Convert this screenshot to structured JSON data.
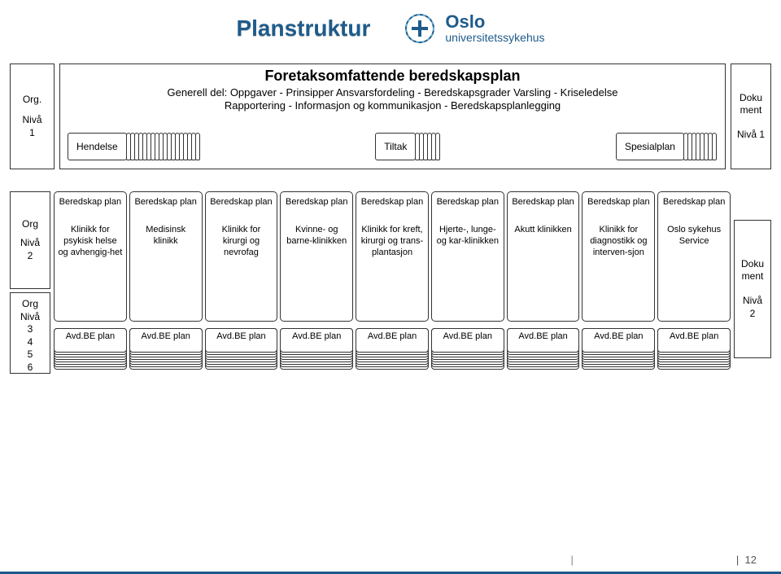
{
  "title": "Planstruktur",
  "logo": {
    "line1": "Oslo",
    "line2": "universitetssykehus"
  },
  "colors": {
    "title_color": "#1f5b8a",
    "border_color": "#333333",
    "background": "#ffffff",
    "footer_rule": "#1b5a8a"
  },
  "level1": {
    "left": {
      "l1": "Org.",
      "l2": "Nivå",
      "l3": "1"
    },
    "center": {
      "title": "Foretaksomfattende beredskapsplan",
      "sub1": "Generell del: Oppgaver - Prinsipper Ansvarsfordeling - Beredskapsgrader Varsling - Kriseledelse",
      "sub2": "Rapportering - Informasjon og kommunikasjon - Beredskapsplanlegging",
      "stacks": {
        "hendelse": {
          "label": "Hendelse",
          "count": 18
        },
        "tiltak": {
          "label": "Tiltak",
          "count": 6
        },
        "spesialplan": {
          "label": "Spesialplan",
          "count": 8
        }
      }
    },
    "right": {
      "l1": "Doku",
      "l2": "ment",
      "l3": "Nivå 1"
    }
  },
  "level2": {
    "left_top": {
      "l1": "Org",
      "l2": "Nivå",
      "l3": "2"
    },
    "left_bottom": {
      "l1": "Org",
      "l2": "Nivå",
      "l3": "3",
      "l4": "4",
      "l5": "5",
      "l6": "6"
    },
    "right": {
      "l1": "Doku",
      "l2": "ment",
      "l3": "Nivå",
      "l4": "2"
    },
    "beredskap_label": "Beredskap plan",
    "avd_label": "Avd.BE plan",
    "avd_stack_count": 8,
    "clinics": [
      "Klinikk for psykisk helse og avhengig-het",
      "Medisinsk klinikk",
      "Klinikk for kirurgi og nevrofag",
      "Kvinne- og barne-klinikken",
      "Klinikk for kreft, kirurgi og trans-plantasjon",
      "Hjerte-, lunge- og kar-klinikken",
      "Akutt klinikken",
      "Klinikk for diagnostikk og interven-sjon",
      "Oslo sykehus Service"
    ]
  },
  "footer": {
    "page": "12"
  }
}
